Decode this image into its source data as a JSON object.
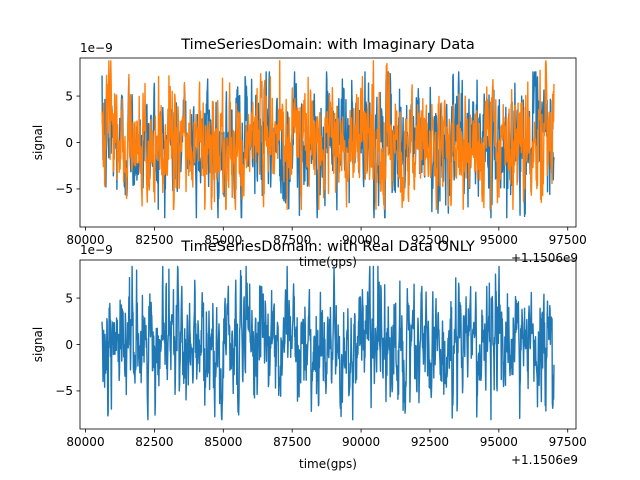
{
  "chart_data": [
    {
      "type": "line",
      "title": "TimeSeriesDomain: with Imaginary Data",
      "xlabel": "time(gps)",
      "ylabel": "signal",
      "x_offset_label": "+1.1506e9",
      "y_scale_label": "1e−9",
      "x_ticks": [
        "80000",
        "82500",
        "85000",
        "87500",
        "90000",
        "92500",
        "95000",
        "97500"
      ],
      "x_tick_values": [
        80000,
        82500,
        85000,
        87500,
        90000,
        92500,
        95000,
        97500
      ],
      "y_ticks": [
        "−5",
        "0",
        "5"
      ],
      "y_tick_values": [
        -5,
        0,
        5
      ],
      "xlim": [
        79800,
        97800
      ],
      "ylim": [
        -9.1,
        9.1
      ],
      "x_range": [
        80600,
        97000
      ],
      "series": [
        {
          "color": "#1f77b4",
          "amplitude": 2.6,
          "peak_max": 7.6,
          "peak_min": -8.1
        },
        {
          "color": "#ff7f0e",
          "amplitude": 2.7,
          "peak_max": 8.8,
          "peak_min": -7.2
        }
      ],
      "grid": false
    },
    {
      "type": "line",
      "title": "TimeSeriesDomain: with Real Data ONLY",
      "xlabel": "time(gps)",
      "ylabel": "signal",
      "x_offset_label": "+1.1506e9",
      "y_scale_label": "1e−9",
      "x_ticks": [
        "80000",
        "82500",
        "85000",
        "87500",
        "90000",
        "92500",
        "95000",
        "97500"
      ],
      "x_tick_values": [
        80000,
        82500,
        85000,
        87500,
        90000,
        92500,
        95000,
        97500
      ],
      "y_ticks": [
        "−5",
        "0",
        "5"
      ],
      "y_tick_values": [
        -5,
        0,
        5
      ],
      "xlim": [
        79800,
        97800
      ],
      "ylim": [
        -9.1,
        9.1
      ],
      "x_range": [
        80600,
        97000
      ],
      "series": [
        {
          "color": "#1f77b4",
          "amplitude": 2.6,
          "peak_max": 8.4,
          "peak_min": -8.1
        }
      ],
      "grid": false
    }
  ]
}
